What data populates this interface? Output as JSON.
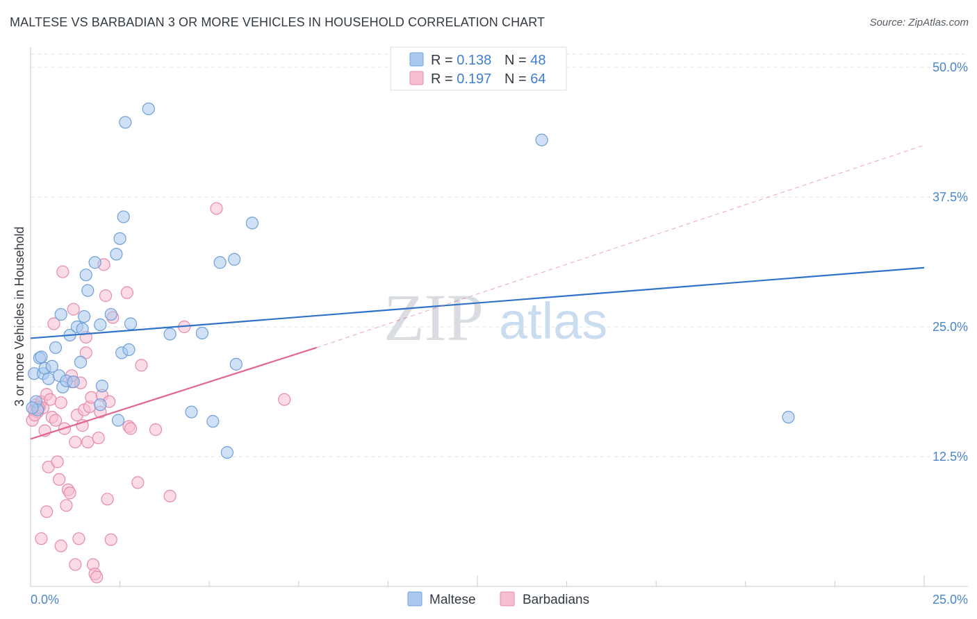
{
  "title": "MALTESE VS BARBADIAN 3 OR MORE VEHICLES IN HOUSEHOLD CORRELATION CHART",
  "source": "Source: ZipAtlas.com",
  "watermark": {
    "zip": "ZIP",
    "atlas": "atlas"
  },
  "legend_top": [
    {
      "r_label": "R = ",
      "r_value": "0.138",
      "n_label": "N = ",
      "n_value": "48"
    },
    {
      "r_label": "R = ",
      "r_value": "0.197",
      "n_label": "N = ",
      "n_value": "64"
    }
  ],
  "legend_bottom": [
    "Maltese",
    "Barbadians"
  ],
  "colors": {
    "maltese_fill": "#a9c9ef",
    "maltese_stroke": "#6e9fd8",
    "maltese_line": "#2f72c8",
    "barbadian_fill": "#f7bdd0",
    "barbadian_stroke": "#e68aa9",
    "barbadian_line": "#e06592",
    "tick_text": "#4a86cc",
    "grid": "#dde1e6"
  },
  "chart_data": {
    "type": "scatter",
    "title": "MALTESE VS BARBADIAN 3 OR MORE VEHICLES IN HOUSEHOLD CORRELATION CHART",
    "xlabel": "",
    "ylabel": "3 or more Vehicles in Household",
    "xlim": [
      0,
      25
    ],
    "ylim": [
      0,
      50
    ],
    "x_tick_labels": [
      "0.0%",
      "25.0%"
    ],
    "y_ticks": [
      12.5,
      25.0,
      37.5,
      50.0
    ],
    "y_tick_labels": [
      "12.5%",
      "25.0%",
      "37.5%",
      "50.0%"
    ],
    "grid": true,
    "legend_position": "top-center",
    "series": [
      {
        "name": "Maltese",
        "R": 0.138,
        "N": 48,
        "trend": {
          "x": [
            0,
            25
          ],
          "y": [
            23.9,
            30.7
          ],
          "style": "solid"
        },
        "points": [
          [
            0.1,
            20.5
          ],
          [
            0.25,
            22.0
          ],
          [
            0.3,
            22.1
          ],
          [
            0.35,
            20.5
          ],
          [
            0.4,
            21.0
          ],
          [
            0.5,
            20.0
          ],
          [
            0.6,
            21.2
          ],
          [
            0.7,
            23.0
          ],
          [
            0.8,
            20.3
          ],
          [
            0.85,
            26.2
          ],
          [
            0.9,
            19.2
          ],
          [
            1.0,
            19.8
          ],
          [
            1.1,
            24.2
          ],
          [
            1.2,
            19.7
          ],
          [
            1.3,
            25.0
          ],
          [
            1.4,
            21.6
          ],
          [
            1.5,
            26.0
          ],
          [
            1.6,
            28.5
          ],
          [
            1.55,
            30.0
          ],
          [
            1.8,
            31.2
          ],
          [
            1.95,
            25.2
          ],
          [
            2.0,
            19.3
          ],
          [
            2.25,
            26.2
          ],
          [
            2.4,
            32.0
          ],
          [
            2.5,
            33.5
          ],
          [
            2.55,
            22.5
          ],
          [
            2.6,
            35.6
          ],
          [
            2.65,
            44.7
          ],
          [
            2.75,
            22.8
          ],
          [
            2.8,
            25.3
          ],
          [
            3.3,
            46.0
          ],
          [
            3.9,
            24.3
          ],
          [
            4.5,
            16.8
          ],
          [
            4.8,
            24.4
          ],
          [
            5.1,
            15.9
          ],
          [
            5.3,
            31.2
          ],
          [
            5.5,
            12.9
          ],
          [
            5.7,
            31.5
          ],
          [
            5.75,
            21.4
          ],
          [
            6.2,
            35.0
          ],
          [
            14.3,
            43.0
          ],
          [
            21.2,
            16.3
          ],
          [
            1.45,
            24.8
          ],
          [
            2.45,
            16.0
          ],
          [
            0.15,
            17.8
          ],
          [
            0.2,
            17.0
          ],
          [
            0.05,
            17.2
          ],
          [
            1.95,
            17.5
          ]
        ]
      },
      {
        "name": "Barbadians",
        "R": 0.197,
        "N": 64,
        "trend": {
          "x": [
            0,
            8
          ],
          "y": [
            14.2,
            23.0
          ],
          "style": "solid",
          "extension": {
            "x": [
              8,
              25
            ],
            "y": [
              23.0,
              42.5
            ],
            "style": "dashed"
          }
        },
        "points": [
          [
            0.05,
            16.0
          ],
          [
            0.1,
            17.0
          ],
          [
            0.15,
            17.5
          ],
          [
            0.2,
            16.8
          ],
          [
            0.25,
            17.3
          ],
          [
            0.3,
            17.8
          ],
          [
            0.35,
            17.2
          ],
          [
            0.4,
            15.0
          ],
          [
            0.45,
            18.5
          ],
          [
            0.5,
            11.5
          ],
          [
            0.55,
            18.0
          ],
          [
            0.6,
            16.3
          ],
          [
            0.65,
            25.3
          ],
          [
            0.7,
            16.0
          ],
          [
            0.75,
            12.0
          ],
          [
            0.8,
            10.3
          ],
          [
            0.85,
            17.7
          ],
          [
            0.9,
            30.3
          ],
          [
            0.95,
            15.2
          ],
          [
            1.0,
            7.8
          ],
          [
            1.05,
            9.3
          ],
          [
            1.1,
            9.0
          ],
          [
            1.15,
            19.7
          ],
          [
            1.2,
            26.7
          ],
          [
            1.25,
            13.9
          ],
          [
            1.3,
            16.5
          ],
          [
            1.35,
            4.6
          ],
          [
            1.4,
            19.6
          ],
          [
            1.45,
            15.5
          ],
          [
            1.5,
            17.0
          ],
          [
            1.55,
            22.5
          ],
          [
            1.6,
            13.9
          ],
          [
            1.65,
            17.3
          ],
          [
            1.7,
            18.2
          ],
          [
            1.75,
            2.1
          ],
          [
            1.8,
            1.2
          ],
          [
            1.85,
            0.9
          ],
          [
            1.9,
            14.3
          ],
          [
            1.95,
            16.8
          ],
          [
            2.0,
            18.4
          ],
          [
            2.05,
            31.0
          ],
          [
            2.1,
            28.0
          ],
          [
            2.15,
            8.4
          ],
          [
            2.2,
            17.8
          ],
          [
            2.25,
            4.5
          ],
          [
            2.7,
            28.3
          ],
          [
            2.75,
            15.4
          ],
          [
            2.8,
            15.2
          ],
          [
            3.0,
            10.0
          ],
          [
            3.1,
            21.3
          ],
          [
            3.5,
            15.1
          ],
          [
            3.9,
            8.7
          ],
          [
            4.3,
            25.0
          ],
          [
            5.2,
            36.4
          ],
          [
            7.1,
            18.0
          ],
          [
            0.3,
            4.6
          ],
          [
            0.45,
            7.2
          ],
          [
            0.85,
            3.9
          ],
          [
            1.25,
            2.1
          ],
          [
            0.12,
            16.5
          ],
          [
            0.22,
            17.2
          ],
          [
            1.55,
            24.0
          ],
          [
            1.15,
            20.3
          ],
          [
            2.3,
            25.9
          ]
        ]
      }
    ]
  }
}
